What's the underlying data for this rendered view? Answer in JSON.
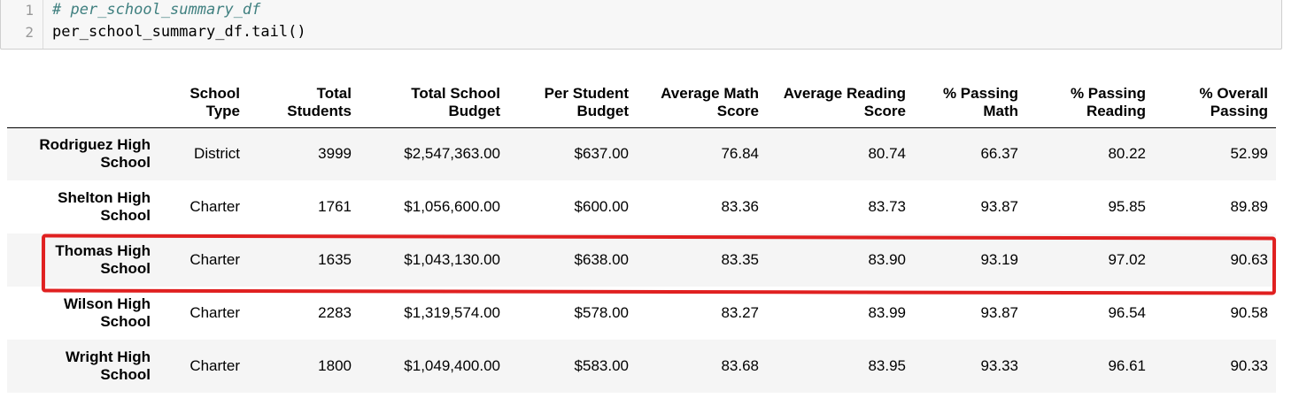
{
  "code_cell": {
    "line_numbers": [
      "1",
      "2"
    ],
    "lines": [
      "# per_school_summary_df",
      "per_school_summary_df.tail()"
    ]
  },
  "table": {
    "index_header": "",
    "columns": [
      "School Type",
      "Total Students",
      "Total School Budget",
      "Per Student Budget",
      "Average Math Score",
      "Average Reading Score",
      "% Passing Math",
      "% Passing Reading",
      "% Overall Passing"
    ],
    "rows": [
      {
        "index": "Rodriguez High School",
        "cells": [
          "District",
          "3999",
          "$2,547,363.00",
          "$637.00",
          "76.84",
          "80.74",
          "66.37",
          "80.22",
          "52.99"
        ]
      },
      {
        "index": "Shelton High School",
        "cells": [
          "Charter",
          "1761",
          "$1,056,600.00",
          "$600.00",
          "83.36",
          "83.73",
          "93.87",
          "95.85",
          "89.89"
        ]
      },
      {
        "index": "Thomas High School",
        "cells": [
          "Charter",
          "1635",
          "$1,043,130.00",
          "$638.00",
          "83.35",
          "83.90",
          "93.19",
          "97.02",
          "90.63"
        ]
      },
      {
        "index": "Wilson High School",
        "cells": [
          "Charter",
          "2283",
          "$1,319,574.00",
          "$578.00",
          "83.27",
          "83.99",
          "93.87",
          "96.54",
          "90.58"
        ]
      },
      {
        "index": "Wright High School",
        "cells": [
          "Charter",
          "1800",
          "$1,049,400.00",
          "$583.00",
          "83.68",
          "83.95",
          "93.33",
          "96.61",
          "90.33"
        ]
      }
    ]
  },
  "annotation": {
    "highlighted_row": "Thomas High School",
    "color": "#e02020"
  }
}
